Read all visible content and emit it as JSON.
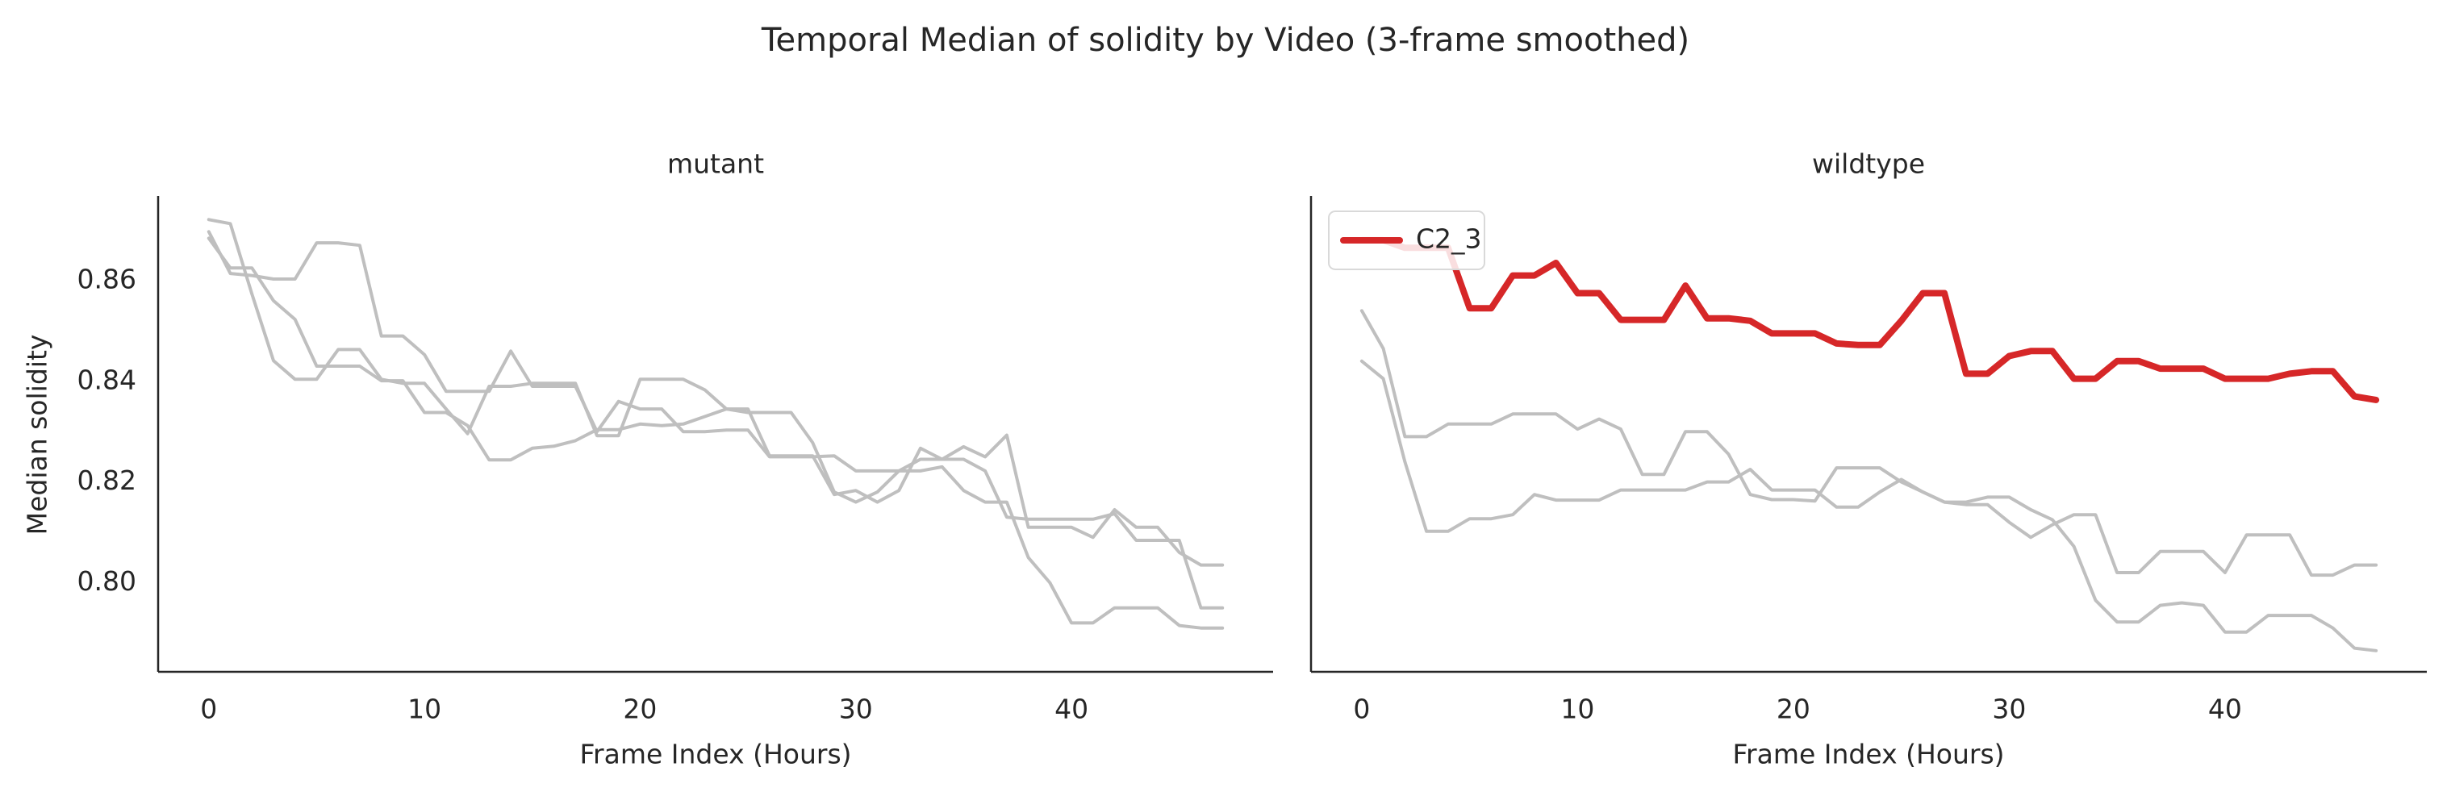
{
  "chart_data": {
    "type": "line",
    "title": "Temporal Median of solidity by Video (3-frame smoothed)",
    "ylabel": "Median solidity",
    "xlim": [
      -2.35,
      49.35
    ],
    "ylim": [
      0.7823,
      0.8768
    ],
    "xticks": [
      0,
      10,
      20,
      30,
      40
    ],
    "yticks": [
      0.8,
      0.82,
      0.84,
      0.86
    ],
    "ytick_labels": [
      "0.80",
      "0.82",
      "0.84",
      "0.86"
    ],
    "grid": false,
    "colors": {
      "background": "#ffffff",
      "axis": "#262626",
      "series_gray": "#bfbfbf",
      "highlight": "#d62728"
    },
    "panels": [
      {
        "subtitle": "mutant",
        "xlabel": "Frame Index (Hours)",
        "legend": null,
        "series": [
          {
            "highlight": false,
            "x": [
              0,
              1,
              2,
              3,
              4,
              5,
              6,
              7,
              8,
              9,
              10,
              11,
              12,
              13,
              14,
              15,
              16,
              17,
              18,
              19,
              20,
              21,
              22,
              23,
              24,
              25,
              26,
              27,
              28,
              29,
              30,
              31,
              32,
              33,
              34,
              35,
              36,
              37,
              38,
              39,
              40,
              41,
              42,
              43,
              44,
              45,
              46,
              47
            ],
            "y": [
              0.8721,
              0.8713,
              0.8573,
              0.8441,
              0.8404,
              0.8404,
              0.8463,
              0.8463,
              0.8404,
              0.8396,
              0.8396,
              0.8345,
              0.8296,
              0.839,
              0.839,
              0.8396,
              0.8396,
              0.8396,
              0.8292,
              0.8292,
              0.8404,
              0.8404,
              0.8404,
              0.8383,
              0.8345,
              0.8345,
              0.8252,
              0.8252,
              0.8252,
              0.8175,
              0.8183,
              0.816,
              0.8183,
              0.8267,
              0.8245,
              0.8245,
              0.8222,
              0.813,
              0.8126,
              0.8126,
              0.8126,
              0.8126,
              0.8137,
              0.8084,
              0.8084,
              0.8084,
              0.795,
              0.795
            ]
          },
          {
            "highlight": false,
            "x": [
              0,
              1,
              2,
              3,
              4,
              5,
              6,
              7,
              8,
              9,
              10,
              11,
              12,
              13,
              14,
              15,
              16,
              17,
              18,
              19,
              20,
              21,
              22,
              23,
              24,
              25,
              26,
              27,
              28,
              29,
              30,
              31,
              32,
              33,
              34,
              35,
              36,
              37,
              38,
              39,
              40,
              41,
              42,
              43,
              44,
              45,
              46,
              47
            ],
            "y": [
              0.8697,
              0.8614,
              0.861,
              0.8603,
              0.8603,
              0.8675,
              0.8675,
              0.867,
              0.849,
              0.849,
              0.8453,
              0.838,
              0.838,
              0.838,
              0.846,
              0.839,
              0.839,
              0.839,
              0.83,
              0.836,
              0.8345,
              0.8345,
              0.83,
              0.83,
              0.8303,
              0.8303,
              0.825,
              0.825,
              0.825,
              0.8252,
              0.8222,
              0.8222,
              0.8222,
              0.8222,
              0.823,
              0.8183,
              0.816,
              0.816,
              0.805,
              0.8,
              0.792,
              0.792,
              0.795,
              0.795,
              0.795,
              0.7915,
              0.791,
              0.791
            ]
          },
          {
            "highlight": false,
            "x": [
              0,
              1,
              2,
              3,
              4,
              5,
              6,
              7,
              8,
              9,
              10,
              11,
              12,
              13,
              14,
              15,
              16,
              17,
              18,
              19,
              20,
              21,
              22,
              23,
              24,
              25,
              26,
              27,
              28,
              29,
              30,
              31,
              32,
              33,
              34,
              35,
              36,
              37,
              38,
              39,
              40,
              41,
              42,
              43,
              44,
              45,
              46,
              47
            ],
            "y": [
              0.8684,
              0.8625,
              0.8625,
              0.856,
              0.8523,
              0.843,
              0.843,
              0.843,
              0.8401,
              0.8401,
              0.8338,
              0.8338,
              0.8312,
              0.8244,
              0.8244,
              0.8267,
              0.8271,
              0.8282,
              0.8304,
              0.8304,
              0.8315,
              0.8312,
              0.8315,
              0.833,
              0.8345,
              0.8338,
              0.8338,
              0.8338,
              0.8278,
              0.818,
              0.816,
              0.818,
              0.8222,
              0.8245,
              0.8245,
              0.827,
              0.825,
              0.8293,
              0.811,
              0.811,
              0.811,
              0.809,
              0.8145,
              0.811,
              0.811,
              0.806,
              0.8035,
              0.8035
            ]
          }
        ]
      },
      {
        "subtitle": "wildtype",
        "xlabel": "Frame Index (Hours)",
        "legend": {
          "placement": "upper-left",
          "entries": [
            "C2_3"
          ]
        },
        "series": [
          {
            "name": "C2_3",
            "highlight": true,
            "x": [
              0,
              1,
              2,
              3,
              4,
              5,
              6,
              7,
              8,
              9,
              10,
              11,
              12,
              13,
              14,
              15,
              16,
              17,
              18,
              19,
              20,
              21,
              22,
              23,
              24,
              25,
              26,
              27,
              28,
              29,
              30,
              31,
              32,
              33,
              34,
              35,
              36,
              37,
              38,
              39,
              40,
              41,
              42,
              43,
              44,
              45,
              46,
              47
            ],
            "y": [
              0.868,
              0.868,
              0.8665,
              0.8665,
              0.8665,
              0.8545,
              0.8545,
              0.861,
              0.861,
              0.8635,
              0.8575,
              0.8575,
              0.8522,
              0.8522,
              0.8522,
              0.859,
              0.8525,
              0.8525,
              0.852,
              0.8495,
              0.8495,
              0.8495,
              0.8475,
              0.8472,
              0.8472,
              0.852,
              0.8575,
              0.8575,
              0.8415,
              0.8415,
              0.845,
              0.846,
              0.846,
              0.8405,
              0.8405,
              0.844,
              0.844,
              0.8425,
              0.8425,
              0.8425,
              0.8405,
              0.8405,
              0.8405,
              0.8415,
              0.842,
              0.842,
              0.837,
              0.8363
            ]
          },
          {
            "highlight": false,
            "x": [
              0,
              1,
              2,
              3,
              4,
              5,
              6,
              7,
              8,
              9,
              10,
              11,
              12,
              13,
              14,
              15,
              16,
              17,
              18,
              19,
              20,
              21,
              22,
              23,
              24,
              25,
              26,
              27,
              28,
              29,
              30,
              31,
              32,
              33,
              34,
              35,
              36,
              37,
              38,
              39,
              40,
              41,
              42,
              43,
              44,
              45,
              46,
              47
            ],
            "y": [
              0.854,
              0.8465,
              0.829,
              0.829,
              0.8315,
              0.8315,
              0.8315,
              0.8335,
              0.8335,
              0.8335,
              0.8305,
              0.8325,
              0.8305,
              0.8215,
              0.8215,
              0.83,
              0.83,
              0.8255,
              0.8175,
              0.8165,
              0.8165,
              0.8162,
              0.8228,
              0.8228,
              0.8228,
              0.82,
              0.818,
              0.816,
              0.816,
              0.817,
              0.817,
              0.8145,
              0.8125,
              0.8072,
              0.7965,
              0.7922,
              0.7922,
              0.7955,
              0.796,
              0.7955,
              0.7902,
              0.7902,
              0.7935,
              0.7935,
              0.7935,
              0.791,
              0.787,
              0.7865
            ]
          },
          {
            "highlight": false,
            "x": [
              0,
              1,
              2,
              3,
              4,
              5,
              6,
              7,
              8,
              9,
              10,
              11,
              12,
              13,
              14,
              15,
              16,
              17,
              18,
              19,
              20,
              21,
              22,
              23,
              24,
              25,
              26,
              27,
              28,
              29,
              30,
              31,
              32,
              33,
              34,
              35,
              36,
              37,
              38,
              39,
              40,
              41,
              42,
              43,
              44,
              45,
              46,
              47
            ],
            "y": [
              0.844,
              0.8405,
              0.824,
              0.8102,
              0.8102,
              0.8127,
              0.8127,
              0.8135,
              0.8175,
              0.8164,
              0.8164,
              0.8164,
              0.8184,
              0.8184,
              0.8184,
              0.8184,
              0.82,
              0.82,
              0.8225,
              0.8184,
              0.8184,
              0.8184,
              0.815,
              0.815,
              0.818,
              0.8205,
              0.818,
              0.816,
              0.8155,
              0.8155,
              0.812,
              0.809,
              0.8115,
              0.8135,
              0.8135,
              0.802,
              0.802,
              0.8062,
              0.8062,
              0.8062,
              0.802,
              0.8095,
              0.8095,
              0.8095,
              0.8015,
              0.8015,
              0.8035,
              0.8035
            ]
          }
        ]
      }
    ]
  }
}
